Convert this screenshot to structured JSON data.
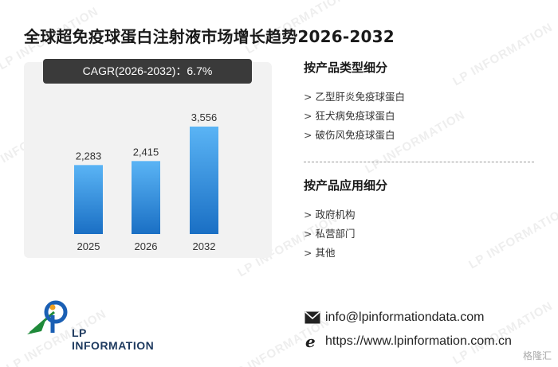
{
  "title": "全球超免疫球蛋白注射液市场增长趋势2026-2032",
  "cagr_label": "CAGR(2026-2032)：6.7%",
  "chart_data": {
    "type": "bar",
    "categories": [
      "2025",
      "2026",
      "2032"
    ],
    "values": [
      2283,
      2415,
      3556
    ],
    "value_labels": [
      "2,283",
      "2,415",
      "3,556"
    ],
    "title": "",
    "xlabel": "",
    "ylabel": "",
    "ylim": [
      0,
      4000
    ],
    "grid": false,
    "bar_color_top": "#5ab4f5",
    "bar_color_bottom": "#1a6fc4"
  },
  "product_type": {
    "heading": "按产品类型细分",
    "items": [
      "乙型肝炎免疫球蛋白",
      "狂犬病免疫球蛋白",
      "破伤风免疫球蛋白"
    ]
  },
  "application": {
    "heading": "按产品应用细分",
    "items": [
      "政府机构",
      "私营部门",
      "其他"
    ]
  },
  "logo": {
    "text": "LP INFORMATION"
  },
  "contact": {
    "email": "info@lpinformationdata.com",
    "website": "https://www.lpinformation.com.cn"
  },
  "watermark": "LP INFORMATION",
  "corner_mark": "格隆汇",
  "icons": {
    "email": "envelope-icon",
    "web": "ie-browser-icon"
  }
}
